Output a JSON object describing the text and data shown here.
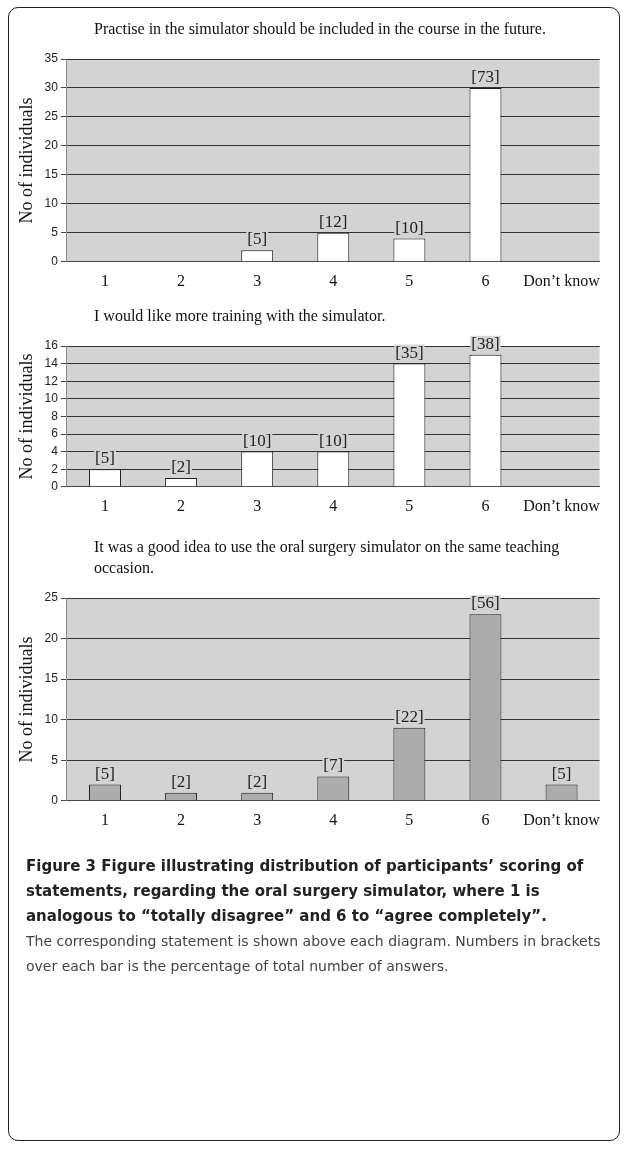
{
  "chart_data": [
    {
      "type": "bar",
      "title": "Practise in the simulator should be included in the course in the future.",
      "ylabel": "No of individuals",
      "categories": [
        "1",
        "2",
        "3",
        "4",
        "5",
        "6",
        "Don’t know"
      ],
      "series": [
        {
          "color": "#ffffff",
          "values": [
            null,
            null,
            2,
            5,
            4,
            30,
            null
          ]
        }
      ],
      "ylim": [
        0,
        35
      ],
      "yticks": [
        0,
        5,
        10,
        15,
        20,
        25,
        30,
        35
      ],
      "grid": "y",
      "annotations": [
        {
          "text": "[5]",
          "x": "3",
          "y": 2
        },
        {
          "text": "[12]",
          "x": "4",
          "y": 5
        },
        {
          "text": "[10]",
          "x": "5",
          "y": 4
        },
        {
          "text": "[73]",
          "x": "6",
          "y": 30
        }
      ]
    },
    {
      "type": "bar",
      "title": "I would like more training with the simulator.",
      "ylabel": "No of individuals",
      "categories": [
        "1",
        "2",
        "3",
        "4",
        "5",
        "6",
        "Don’t know"
      ],
      "series": [
        {
          "color": "#ffffff",
          "values": [
            2,
            1,
            4,
            4,
            14,
            15,
            null
          ]
        }
      ],
      "ylim": [
        0,
        16
      ],
      "yticks": [
        0,
        2,
        4,
        6,
        8,
        10,
        12,
        14,
        16
      ],
      "grid": "y",
      "annotations": [
        {
          "text": "[5]",
          "x": "1",
          "y": 2
        },
        {
          "text": "[2]",
          "x": "2",
          "y": 1
        },
        {
          "text": "[10]",
          "x": "3",
          "y": 4
        },
        {
          "text": "[10]",
          "x": "4",
          "y": 4
        },
        {
          "text": "[35]",
          "x": "5",
          "y": 14
        },
        {
          "text": "[38]",
          "x": "6",
          "y": 15
        }
      ]
    },
    {
      "type": "bar",
      "title": "It was a good idea to use the oral surgery simulator on the same teaching occasion.",
      "ylabel": "No of individuals",
      "categories": [
        "1",
        "2",
        "3",
        "4",
        "5",
        "6",
        "Don’t know"
      ],
      "series": [
        {
          "color": "#acacac",
          "values": [
            2,
            1,
            1,
            3,
            9,
            23,
            2
          ]
        }
      ],
      "ylim": [
        0,
        25
      ],
      "yticks": [
        0,
        5,
        10,
        15,
        20,
        25
      ],
      "grid": "y",
      "annotations": [
        {
          "text": "[5]",
          "x": "1",
          "y": 2
        },
        {
          "text": "[2]",
          "x": "2",
          "y": 1
        },
        {
          "text": "[2]",
          "x": "3",
          "y": 1
        },
        {
          "text": "[7]",
          "x": "4",
          "y": 3
        },
        {
          "text": "[22]",
          "x": "5",
          "y": 9
        },
        {
          "text": "[56]",
          "x": "6",
          "y": 23
        },
        {
          "text": "[5]",
          "x": "Don’t know",
          "y": 2
        },
        "Figure 3 Figure illustrating distribution of participants’ scoring of statements, regarding the oral surgery simulator, where 1 is analogous to “totally disagree” and 6 to “agree completely”.",
        "The corresponding statement is shown above each diagram. Numbers in brackets over each bar is the percentage of total number of answers."
      ]
    }
  ]
}
